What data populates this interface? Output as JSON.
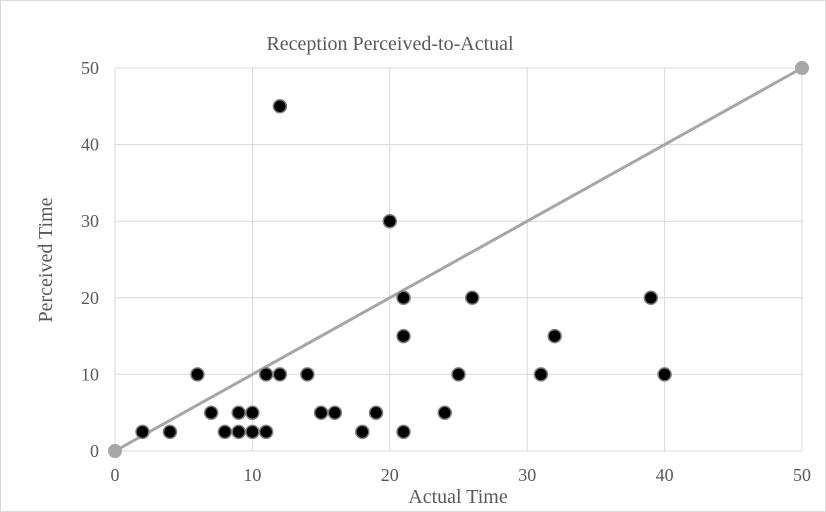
{
  "chart_data": {
    "type": "scatter",
    "title": "Reception Perceived-to-Actual",
    "xlabel": "Actual Time",
    "ylabel": "Perceived Time",
    "xlim": [
      0,
      50
    ],
    "ylim": [
      0,
      50
    ],
    "x_ticks": [
      "0",
      "10",
      "20",
      "30",
      "40",
      "50"
    ],
    "y_ticks": [
      "0",
      "10",
      "20",
      "30",
      "40",
      "50"
    ],
    "grid": true,
    "legend": "none",
    "series": [
      {
        "type": "scatter",
        "color": "#000000",
        "points": [
          {
            "x": 2,
            "y": 2.5
          },
          {
            "x": 4,
            "y": 2.5
          },
          {
            "x": 6,
            "y": 10
          },
          {
            "x": 7,
            "y": 5
          },
          {
            "x": 8,
            "y": 2.5
          },
          {
            "x": 9,
            "y": 2.5
          },
          {
            "x": 9,
            "y": 5
          },
          {
            "x": 10,
            "y": 5
          },
          {
            "x": 10,
            "y": 2.5
          },
          {
            "x": 11,
            "y": 2.5
          },
          {
            "x": 11,
            "y": 10
          },
          {
            "x": 12,
            "y": 10
          },
          {
            "x": 12,
            "y": 45
          },
          {
            "x": 14,
            "y": 10
          },
          {
            "x": 15,
            "y": 5
          },
          {
            "x": 16,
            "y": 5
          },
          {
            "x": 18,
            "y": 2.5
          },
          {
            "x": 19,
            "y": 5
          },
          {
            "x": 20,
            "y": 30
          },
          {
            "x": 21,
            "y": 20
          },
          {
            "x": 21,
            "y": 15
          },
          {
            "x": 21,
            "y": 2.5
          },
          {
            "x": 24,
            "y": 5
          },
          {
            "x": 25,
            "y": 10
          },
          {
            "x": 26,
            "y": 20
          },
          {
            "x": 31,
            "y": 10
          },
          {
            "x": 32,
            "y": 15
          },
          {
            "x": 39,
            "y": 20
          },
          {
            "x": 40,
            "y": 10
          }
        ]
      },
      {
        "type": "line",
        "color": "#a6a6a6",
        "points": [
          {
            "x": 0,
            "y": 0
          },
          {
            "x": 50,
            "y": 50
          }
        ]
      }
    ]
  }
}
